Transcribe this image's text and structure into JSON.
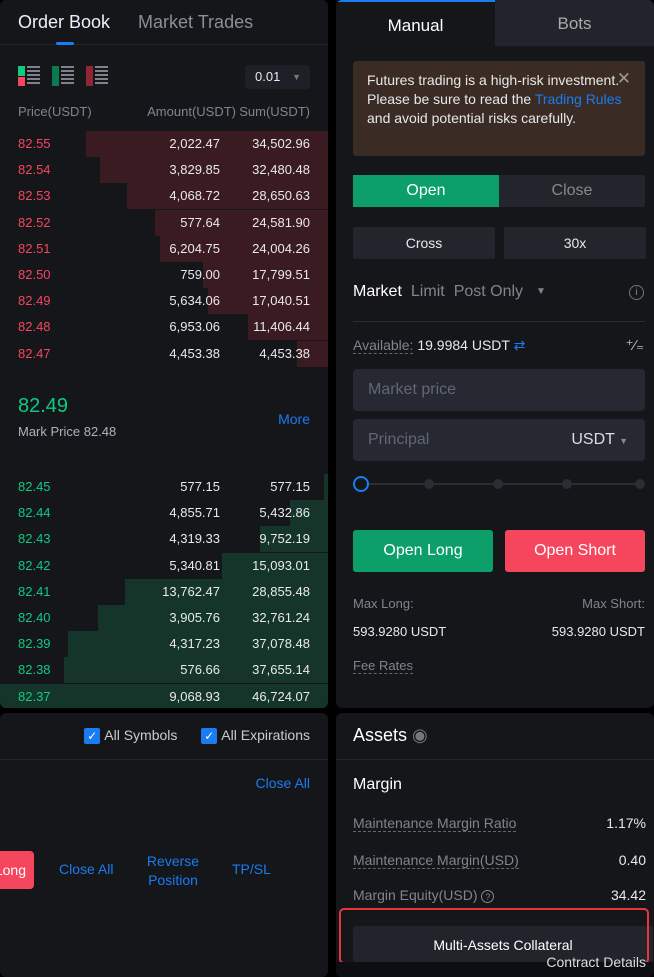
{
  "orderbook": {
    "tabs": [
      "Order Book",
      "Market Trades"
    ],
    "precision": "0.01",
    "headers": [
      "Price(USDT)",
      "Amount(USDT)",
      "Sum(USDT)"
    ],
    "asks": [
      [
        "82.55",
        "2,022.47",
        "34,502.96"
      ],
      [
        "82.54",
        "3,829.85",
        "32,480.48"
      ],
      [
        "82.53",
        "4,068.72",
        "28,650.63"
      ],
      [
        "82.52",
        "577.64",
        "24,581.90"
      ],
      [
        "82.51",
        "6,204.75",
        "24,004.26"
      ],
      [
        "82.50",
        "759.00",
        "17,799.51"
      ],
      [
        "82.49",
        "5,634.06",
        "17,040.51"
      ],
      [
        "82.48",
        "6,953.06",
        "11,406.44"
      ],
      [
        "82.47",
        "4,453.38",
        "4,453.38"
      ]
    ],
    "last_price": "82.49",
    "mark_price": "Mark Price 82.48",
    "more": "More",
    "bids": [
      [
        "82.45",
        "577.15",
        "577.15"
      ],
      [
        "82.44",
        "4,855.71",
        "5,432.86"
      ],
      [
        "82.43",
        "4,319.33",
        "9,752.19"
      ],
      [
        "82.42",
        "5,340.81",
        "15,093.01"
      ],
      [
        "82.41",
        "13,762.47",
        "28,855.48"
      ],
      [
        "82.40",
        "3,905.76",
        "32,761.24"
      ],
      [
        "82.39",
        "4,317.23",
        "37,078.48"
      ],
      [
        "82.38",
        "576.66",
        "37,655.14"
      ],
      [
        "82.37",
        "9,068.93",
        "46,724.07"
      ]
    ]
  },
  "trade": {
    "tabs": [
      "Manual",
      "Bots"
    ],
    "warning": {
      "pre": "Futures trading is a high-risk investment. Please be sure to read the ",
      "link": "Trading Rules",
      "post": " and avoid potential risks carefully."
    },
    "open": "Open",
    "close": "Close",
    "margin_mode": "Cross",
    "leverage": "30x",
    "order_types": [
      "Market",
      "Limit",
      "Post Only"
    ],
    "available_label": "Available:",
    "available_value": "19.9984 USDT",
    "price_placeholder": "Market price",
    "principal_placeholder": "Principal",
    "unit": "USDT",
    "slider_percent": 0,
    "open_long": "Open Long",
    "open_short": "Open Short",
    "max_long_label": "Max Long:",
    "max_short_label": "Max Short:",
    "max_long": "593.9280 USDT",
    "max_short": "593.9280 USDT",
    "fee_rates": "Fee Rates"
  },
  "positions": {
    "all_symbols": "All Symbols",
    "all_expirations": "All Expirations",
    "close_all_top": "Close All",
    "long": "Long",
    "close_all": "Close All",
    "reverse": "Reverse Position",
    "tpsl": "TP/SL"
  },
  "assets": {
    "title": "Assets",
    "margin": "Margin",
    "rows": [
      [
        "Maintenance Margin Ratio",
        "1.17%"
      ],
      [
        "Maintenance Margin(USD)",
        "0.40"
      ],
      [
        "Margin Equity(USD)",
        "34.42"
      ]
    ],
    "multi": "Multi-Assets Collateral",
    "contract": "Contract Details"
  },
  "colors": {
    "ask": "#f6465d",
    "bid": "#0ecb81",
    "accent": "#1a7cf0"
  }
}
